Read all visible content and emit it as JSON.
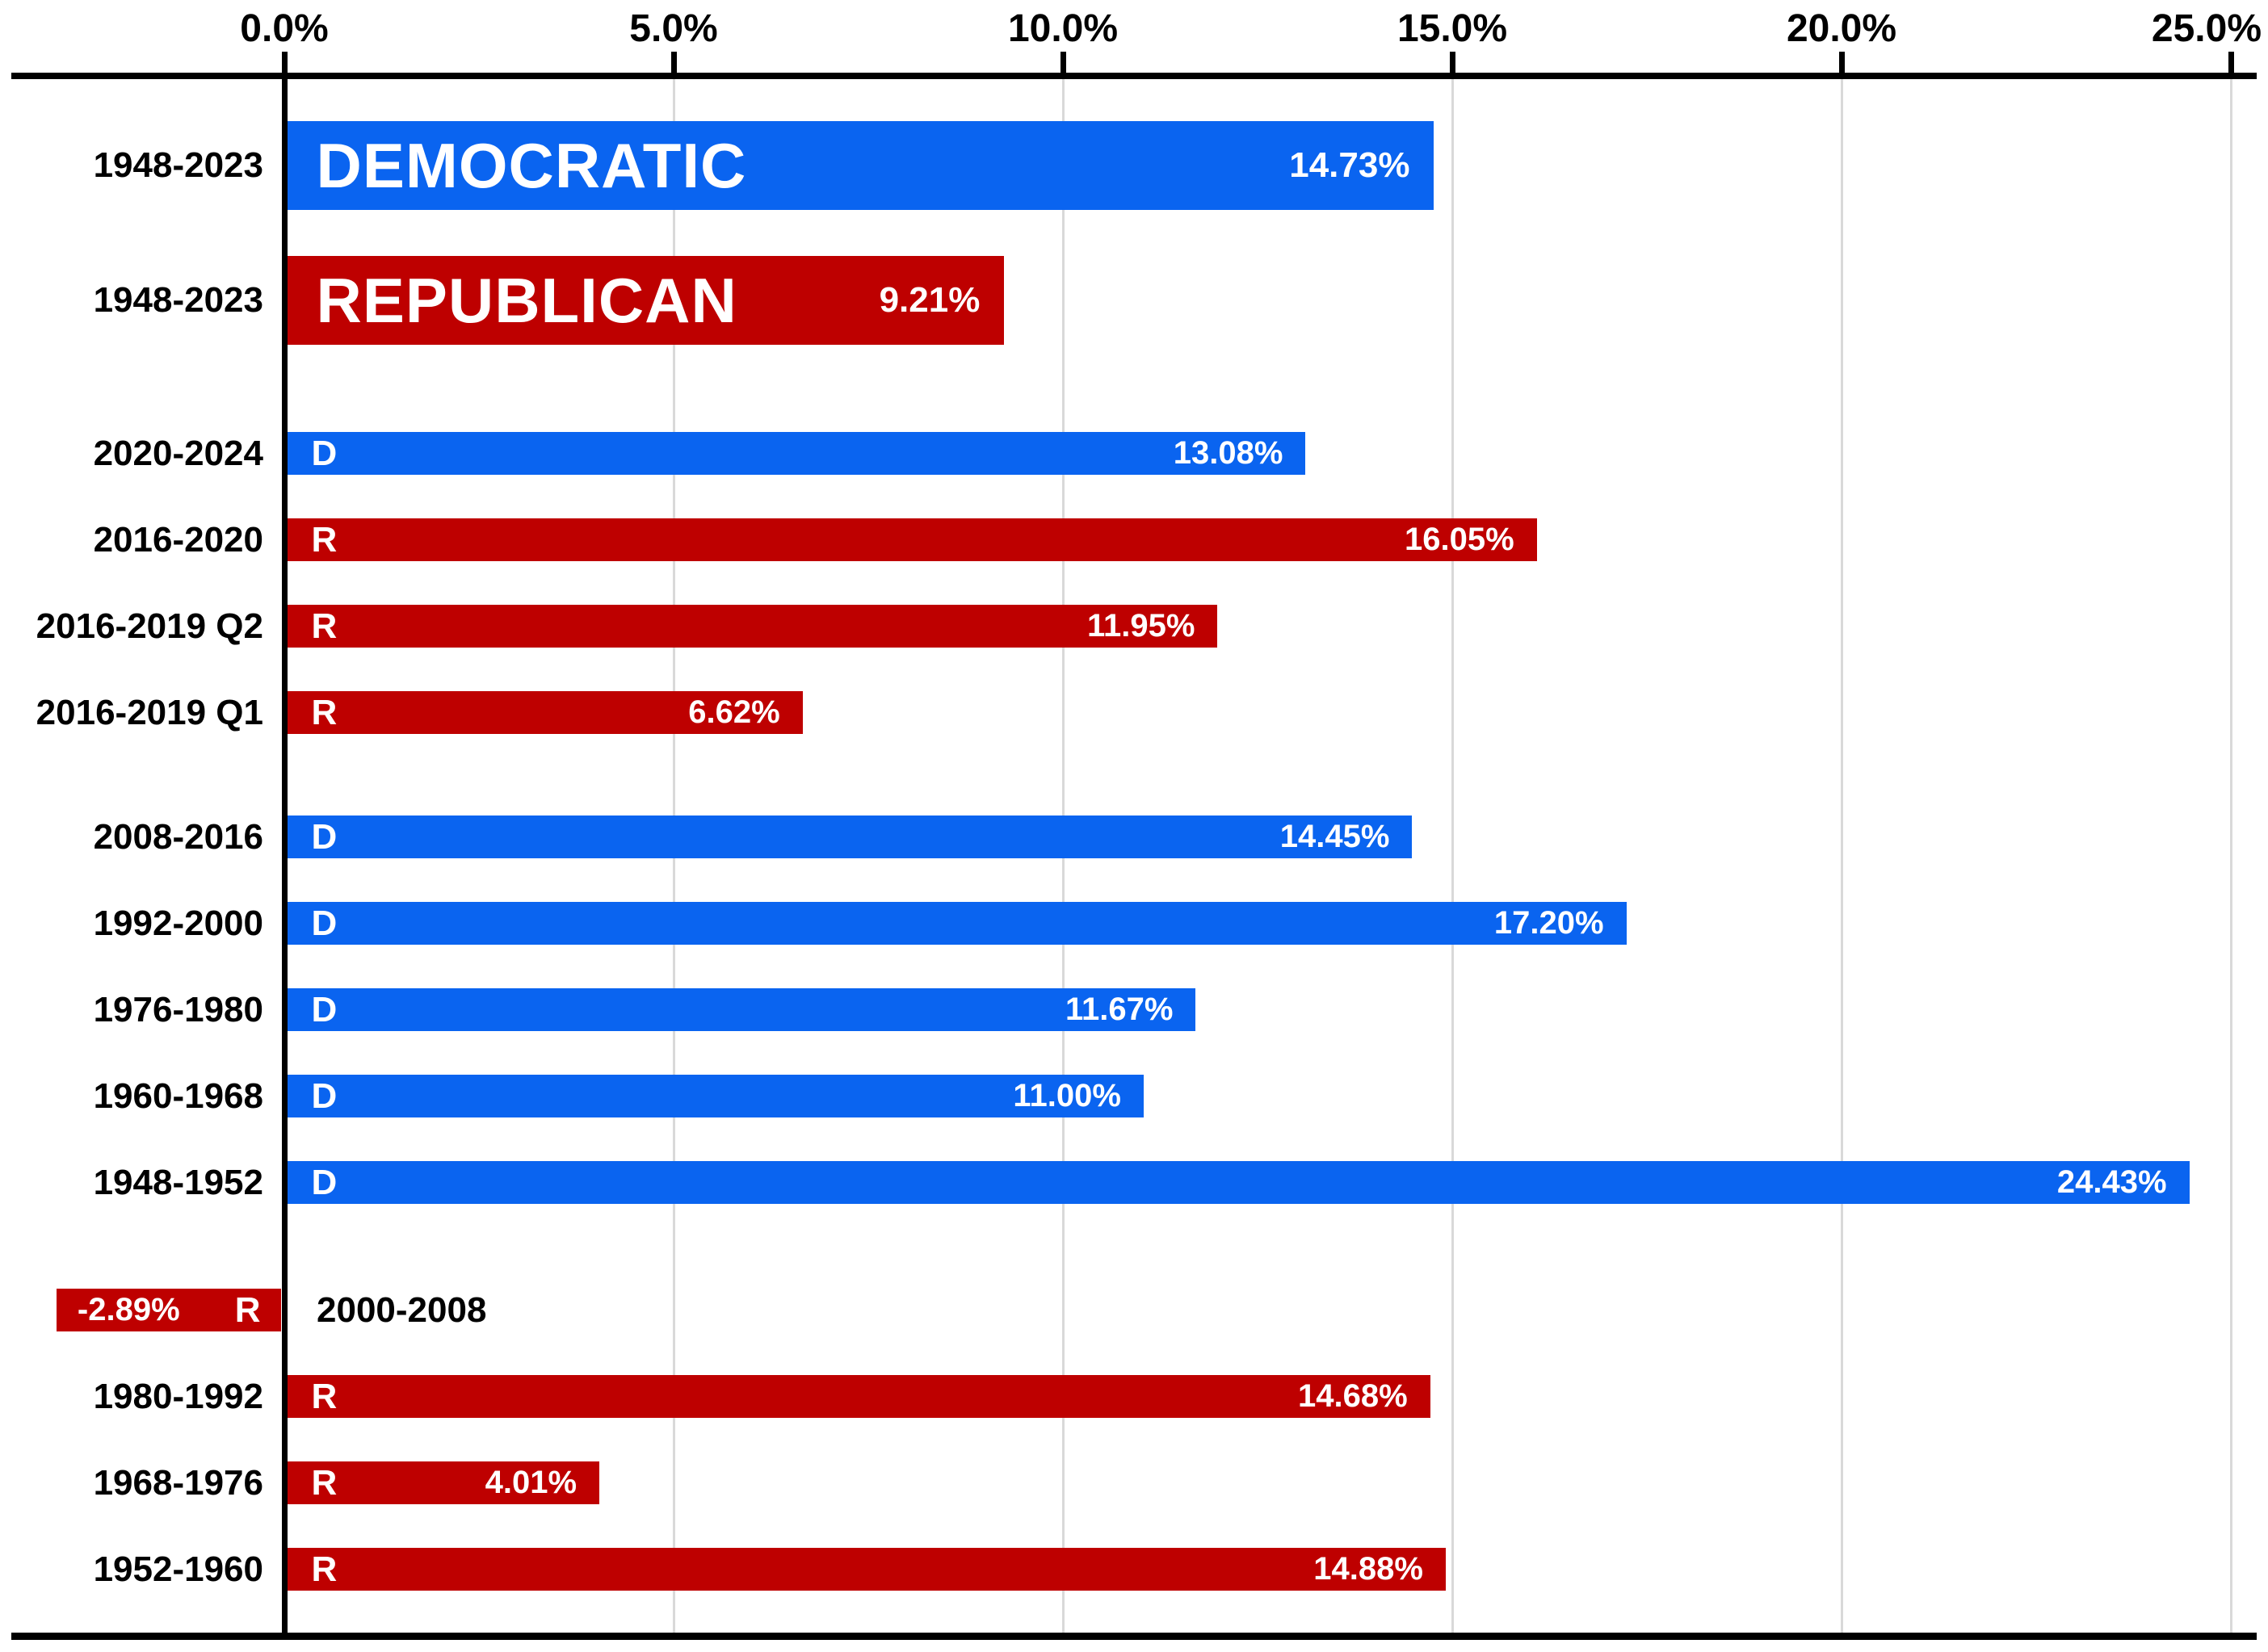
{
  "chart_data": {
    "type": "bar",
    "orientation": "horizontal",
    "title": "",
    "value_unit": "percent",
    "x_axis": {
      "range": [
        0,
        25
      ],
      "grid": true,
      "ticks": [
        {
          "label": "0.0%",
          "value": 0
        },
        {
          "label": "5.0%",
          "value": 5
        },
        {
          "label": "10.0%",
          "value": 10
        },
        {
          "label": "15.0%",
          "value": 15
        },
        {
          "label": "20.0%",
          "value": 20
        },
        {
          "label": "25.0%",
          "value": 25
        }
      ]
    },
    "colors": {
      "democratic": "#0A64F0",
      "republican": "#BE0000",
      "grid": "#D9D9D9",
      "axis": "#000000",
      "bar_text": "#FFFFFF"
    },
    "rows": [
      {
        "label": "1948-2023",
        "party": "D",
        "bar_text": "DEMOCRATIC",
        "value": 14.73,
        "value_label": "14.73%",
        "style": "summary"
      },
      {
        "label": "1948-2023",
        "party": "R",
        "bar_text": "REPUBLICAN",
        "value": 9.21,
        "value_label": "9.21%",
        "style": "summary"
      },
      {
        "label": "2020-2024",
        "party": "D",
        "bar_text": "D",
        "value": 13.08,
        "value_label": "13.08%",
        "style": "regular"
      },
      {
        "label": "2016-2020",
        "party": "R",
        "bar_text": "R",
        "value": 16.05,
        "value_label": "16.05%",
        "style": "regular"
      },
      {
        "label": "2016-2019 Q2",
        "party": "R",
        "bar_text": "R",
        "value": 11.95,
        "value_label": "11.95%",
        "style": "regular"
      },
      {
        "label": "2016-2019 Q1",
        "party": "R",
        "bar_text": "R",
        "value": 6.62,
        "value_label": "6.62%",
        "style": "regular"
      },
      {
        "label": "2008-2016",
        "party": "D",
        "bar_text": "D",
        "value": 14.45,
        "value_label": "14.45%",
        "style": "regular"
      },
      {
        "label": "1992-2000",
        "party": "D",
        "bar_text": "D",
        "value": 17.2,
        "value_label": "17.20%",
        "style": "regular"
      },
      {
        "label": "1976-1980",
        "party": "D",
        "bar_text": "D",
        "value": 11.67,
        "value_label": "11.67%",
        "style": "regular"
      },
      {
        "label": "1960-1968",
        "party": "D",
        "bar_text": "D",
        "value": 11.0,
        "value_label": "11.00%",
        "style": "regular"
      },
      {
        "label": "1948-1952",
        "party": "D",
        "bar_text": "D",
        "value": 24.43,
        "value_label": "24.43%",
        "style": "regular"
      },
      {
        "label": "2000-2008",
        "party": "R",
        "bar_text": "R",
        "value": -2.89,
        "value_label": "-2.89%",
        "style": "regular",
        "label_position": "inside-plot"
      },
      {
        "label": "1980-1992",
        "party": "R",
        "bar_text": "R",
        "value": 14.68,
        "value_label": "14.68%",
        "style": "regular"
      },
      {
        "label": "1968-1976",
        "party": "R",
        "bar_text": "R",
        "value": 4.01,
        "value_label": "4.01%",
        "style": "regular"
      },
      {
        "label": "1952-1960",
        "party": "R",
        "bar_text": "R",
        "value": 14.88,
        "value_label": "14.88%",
        "style": "regular"
      }
    ]
  }
}
